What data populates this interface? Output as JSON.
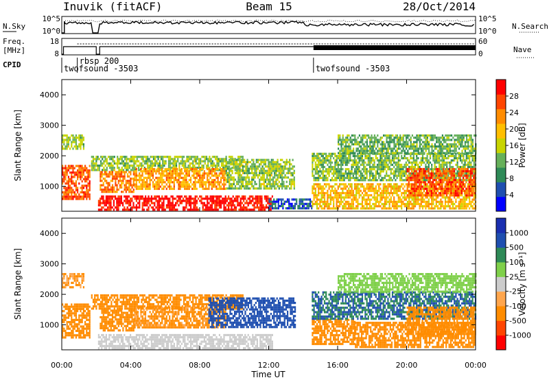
{
  "header": {
    "station": "Inuvik (fitACF)",
    "beam": "Beam 15",
    "date": "28/Oct/2014"
  },
  "summary_panels": {
    "nsky_label": "N.Sky",
    "noise_ticks": [
      "10^5",
      "10^0"
    ],
    "nsearch_label": "N.Search",
    "freq_label": "Freq.",
    "freq_unit": "[MHz]",
    "freq_ticks": [
      "8",
      "18"
    ],
    "nave_ticks": [
      "60",
      "0"
    ],
    "nave_label": "Nave",
    "cpid_label": "CPID",
    "cpid_segments": [
      {
        "name": "twofsound -3503",
        "start_hour": 0.0,
        "end_hour": 0.9
      },
      {
        "name": "rbsp 200",
        "start_hour": 0.9,
        "end_hour": 2.2
      },
      {
        "name": "twofsound -3503",
        "start_hour": 14.6,
        "end_hour": 24.0
      }
    ]
  },
  "colors": {
    "power_scale": [
      "#0000ff",
      "#1f4fb0",
      "#2e8a57",
      "#66b05a",
      "#c8d400",
      "#ffbf00",
      "#ff8c00",
      "#ff4500",
      "#ff0000"
    ],
    "velocity_scale": [
      "#ff0000",
      "#ff4500",
      "#ff8c00",
      "#ffa64d",
      "#cccccc",
      "#7fd04a",
      "#2e8a57",
      "#1f4fb0",
      "#1a2fb0"
    ],
    "gray_scatter": "#bebebe"
  },
  "chart_data": [
    {
      "type": "heatmap",
      "panel": "power",
      "ylabel": "Slant Range [km]",
      "ylim": [
        180,
        4500
      ],
      "yticks": [
        "1000",
        "2000",
        "3000",
        "4000"
      ],
      "xlim_hours": [
        0,
        24
      ],
      "colorbar_label": "Power [dB]",
      "colorbar_ticks": [
        "4",
        "8",
        "12",
        "16",
        "20",
        "24",
        "28"
      ],
      "colorbar_range": [
        0,
        32
      ],
      "regions": [
        {
          "t0": 0.0,
          "t1": 1.6,
          "r0": 600,
          "r1": 1700,
          "value": 26
        },
        {
          "t0": 0.0,
          "t1": 1.3,
          "r0": 2200,
          "r1": 2700,
          "value": 14
        },
        {
          "t0": 1.7,
          "t1": 10.5,
          "r0": 1500,
          "r1": 2000,
          "value": 14
        },
        {
          "t0": 2.1,
          "t1": 12.2,
          "r0": 200,
          "r1": 700,
          "value": 30
        },
        {
          "t0": 2.2,
          "t1": 4.2,
          "r0": 800,
          "r1": 1500,
          "value": 24
        },
        {
          "t0": 4.2,
          "t1": 9.5,
          "r0": 900,
          "r1": 1600,
          "value": 22
        },
        {
          "t0": 9.5,
          "t1": 13.5,
          "r0": 900,
          "r1": 1900,
          "value": 14
        },
        {
          "t0": 12.0,
          "t1": 14.5,
          "r0": 300,
          "r1": 600,
          "value": 6
        },
        {
          "t0": 14.5,
          "t1": 24.0,
          "r0": 1200,
          "r1": 2100,
          "value": 13
        },
        {
          "t0": 14.5,
          "t1": 24.0,
          "r0": 300,
          "r1": 1100,
          "value": 20
        },
        {
          "t0": 16.0,
          "t1": 24.0,
          "r0": 2100,
          "r1": 2700,
          "value": 12
        },
        {
          "t0": 20.0,
          "t1": 24.0,
          "r0": 700,
          "r1": 1600,
          "value": 26
        }
      ]
    },
    {
      "type": "heatmap",
      "panel": "velocity",
      "ylabel": "Slant Range [km]",
      "ylim": [
        180,
        4500
      ],
      "yticks": [
        "1000",
        "2000",
        "3000",
        "4000"
      ],
      "xlim_hours": [
        0,
        24
      ],
      "xticks": [
        "00:00",
        "04:00",
        "08:00",
        "12:00",
        "16:00",
        "20:00",
        "00:00"
      ],
      "xlabel": "Time UT",
      "colorbar_label": "Velocity [m s⁻¹]",
      "colorbar_ticks": [
        "1000",
        "500",
        "100",
        "25",
        "-25",
        "-100",
        "-500",
        "-1000"
      ],
      "regions": [
        {
          "t0": 0.0,
          "t1": 1.6,
          "r0": 600,
          "r1": 1700,
          "value": -300
        },
        {
          "t0": 0.0,
          "t1": 1.3,
          "r0": 2200,
          "r1": 2700,
          "value": -100
        },
        {
          "t0": 1.7,
          "t1": 10.5,
          "r0": 1500,
          "r1": 2000,
          "value": -150
        },
        {
          "t0": 2.1,
          "t1": 12.2,
          "r0": 200,
          "r1": 700,
          "value": 0
        },
        {
          "t0": 2.2,
          "t1": 4.2,
          "r0": 800,
          "r1": 1500,
          "value": -200
        },
        {
          "t0": 4.2,
          "t1": 9.5,
          "r0": 900,
          "r1": 1600,
          "value": -120
        },
        {
          "t0": 8.5,
          "t1": 13.5,
          "r0": 900,
          "r1": 1900,
          "value": 800
        },
        {
          "t0": 14.5,
          "t1": 17.0,
          "r0": 400,
          "r1": 1200,
          "value": -400
        },
        {
          "t0": 14.5,
          "t1": 24.0,
          "r0": 1200,
          "r1": 2100,
          "value": 500
        },
        {
          "t0": 17.0,
          "t1": 24.0,
          "r0": 300,
          "r1": 1100,
          "value": -300
        },
        {
          "t0": 20.0,
          "t1": 24.0,
          "r0": 700,
          "r1": 1600,
          "value": -200
        },
        {
          "t0": 16.0,
          "t1": 24.0,
          "r0": 2100,
          "r1": 2700,
          "value": 40
        }
      ]
    }
  ]
}
